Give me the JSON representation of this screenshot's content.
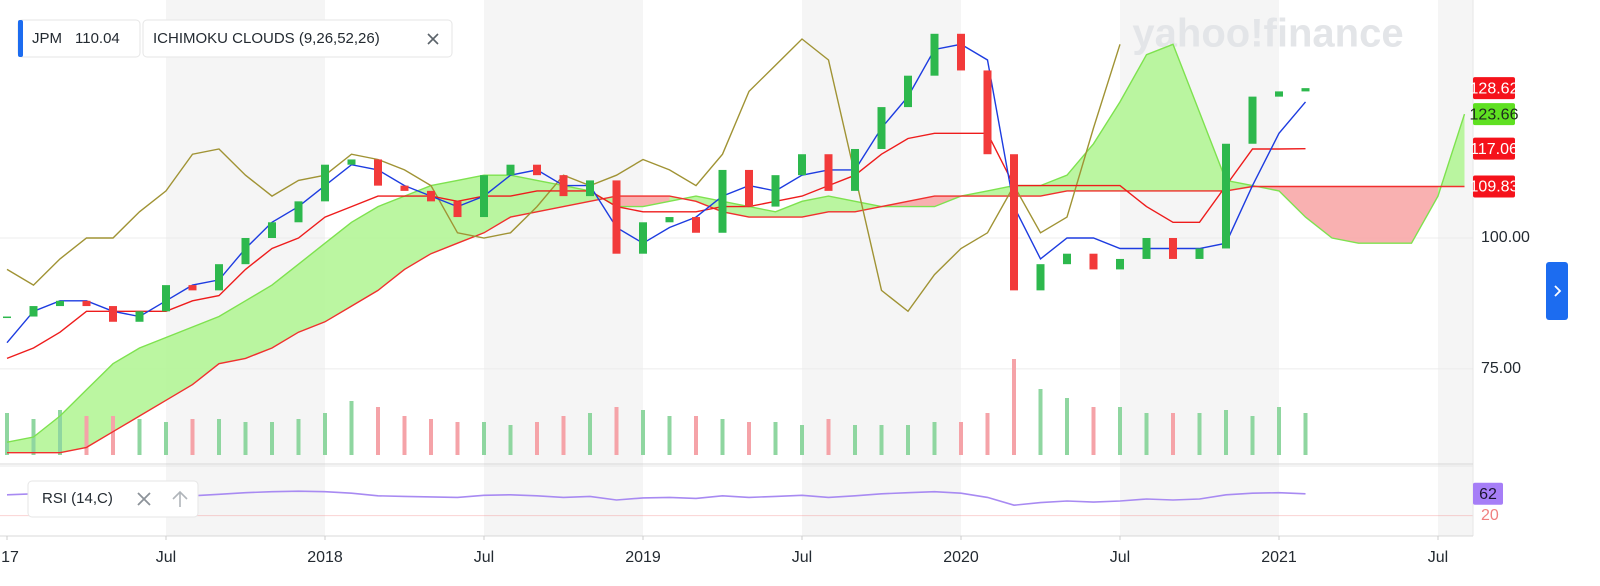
{
  "chart_data": [
    {
      "type": "candlestick",
      "symbol": "JPM",
      "price": 110.04,
      "indicator": "ICHIMOKU CLOUDS (9,26,52,26)",
      "watermark": "yahoo!finance",
      "x": [
        "2017-01",
        "2017-02",
        "2017-03",
        "2017-04",
        "2017-05",
        "2017-06",
        "2017-07",
        "2017-08",
        "2017-09",
        "2017-10",
        "2017-11",
        "2017-12",
        "2018-01",
        "2018-02",
        "2018-03",
        "2018-04",
        "2018-05",
        "2018-06",
        "2018-07",
        "2018-08",
        "2018-09",
        "2018-10",
        "2018-11",
        "2018-12",
        "2019-01",
        "2019-02",
        "2019-03",
        "2019-04",
        "2019-05",
        "2019-06",
        "2019-07",
        "2019-08",
        "2019-09",
        "2019-10",
        "2019-11",
        "2019-12",
        "2020-01",
        "2020-02",
        "2020-03",
        "2020-04",
        "2020-05",
        "2020-06",
        "2020-07",
        "2020-08",
        "2020-09",
        "2020-10",
        "2020-11",
        "2020-12",
        "2021-01",
        "2021-02",
        "2021-03",
        "2021-04",
        "2021-05",
        "2021-06",
        "2021-07",
        "2021-08"
      ],
      "xticks": [
        {
          "value": "2017-01",
          "label": "17"
        },
        {
          "value": "2017-07",
          "label": "Jul"
        },
        {
          "value": "2018-01",
          "label": "2018"
        },
        {
          "value": "2018-07",
          "label": "Jul"
        },
        {
          "value": "2019-01",
          "label": "2019"
        },
        {
          "value": "2019-07",
          "label": "Jul"
        },
        {
          "value": "2020-01",
          "label": "2020"
        },
        {
          "value": "2020-07",
          "label": "Jul"
        },
        {
          "value": "2021-01",
          "label": "2021"
        },
        {
          "value": "2021-07",
          "label": "Jul"
        }
      ],
      "ylim": [
        57.6,
        144.5
      ],
      "yticks": [
        {
          "value": 75,
          "label": "75.00"
        },
        {
          "value": 100,
          "label": "100.00"
        }
      ],
      "y2lim": [
        0,
        150
      ],
      "grid": true,
      "series": [
        {
          "type": "candlestick",
          "up_color": "#2db84d",
          "down_color": "#f23a3a",
          "label_color": "#f5121b",
          "values": [
            85,
            87,
            88,
            87,
            84,
            86,
            91,
            90,
            95,
            100,
            103,
            107,
            114,
            115,
            110,
            109,
            107,
            104,
            112,
            114,
            112,
            108,
            111,
            97,
            103,
            104,
            101,
            113,
            106,
            112,
            116,
            109,
            117,
            125,
            131,
            139,
            132,
            116,
            90,
            95,
            97,
            94,
            96,
            100,
            96,
            98,
            118,
            127,
            128,
            128.62,
            null,
            null,
            null,
            null,
            null,
            null
          ]
        },
        {
          "type": "bar",
          "axis": "y2",
          "up_color": "#8fd6a0",
          "down_color": "#f5a3a8",
          "values": [
            14,
            12,
            15,
            13,
            13,
            12,
            11,
            12,
            12,
            11,
            11,
            12,
            14,
            18,
            16,
            13,
            12,
            11,
            11,
            10,
            11,
            13,
            14,
            16,
            15,
            13,
            13,
            12,
            11,
            11,
            10,
            12,
            10,
            10,
            10,
            11,
            11,
            14,
            32,
            22,
            19,
            16,
            16,
            14,
            14,
            14,
            15,
            13,
            16,
            14,
            null,
            null,
            null,
            null,
            null,
            null
          ]
        },
        {
          "type": "line",
          "color": "#7ee24f",
          "fill": "#b4f597",
          "label_color": "#5fe021",
          "values": [
            61,
            62,
            66,
            71,
            76,
            79,
            81,
            83,
            85,
            88,
            91,
            95,
            99,
            103,
            106,
            108,
            110,
            111,
            112,
            112,
            111,
            110,
            109,
            106,
            106,
            107,
            108,
            107,
            106,
            105,
            107,
            108,
            107,
            106,
            106,
            106,
            108,
            109,
            110,
            110,
            112,
            118,
            126,
            135,
            137,
            124,
            111,
            110,
            109,
            104,
            100,
            99,
            99,
            99,
            108,
            123.66
          ]
        },
        {
          "type": "line",
          "color": "#f0302e",
          "fill": "#f8a9a9",
          "label_color": "#f5121b",
          "values": [
            59,
            59,
            59,
            60,
            63,
            66,
            69,
            72,
            76,
            77,
            79,
            82,
            84,
            87,
            90,
            94,
            97,
            99,
            101,
            104,
            105,
            106,
            107,
            108,
            108,
            108,
            107,
            105,
            104,
            104,
            104,
            105,
            105,
            106,
            107,
            108,
            108,
            108,
            108,
            108,
            109,
            109,
            109,
            109,
            109,
            109,
            109,
            109.83,
            109.83,
            109.83,
            109.83,
            109.83,
            109.83,
            109.83,
            109.83,
            109.83
          ]
        },
        {
          "type": "line",
          "color": "#a09334",
          "values": [
            94,
            91,
            96,
            100,
            100,
            105,
            109,
            116,
            117,
            112,
            108,
            111,
            112,
            116,
            115,
            113,
            110,
            101,
            100,
            101,
            106,
            112,
            110,
            112,
            115,
            113,
            110,
            116,
            128,
            133,
            138,
            134,
            112,
            90,
            86,
            93,
            98,
            101,
            110,
            101,
            104,
            121,
            137,
            null,
            null,
            null,
            null,
            null,
            null,
            null,
            null,
            null,
            null,
            null,
            null,
            null
          ]
        },
        {
          "type": "line",
          "color": "#ee1c1c",
          "label_color": "#f5121b",
          "values": [
            77,
            79,
            82,
            86,
            86,
            86,
            86,
            88,
            89,
            94,
            98,
            100,
            104,
            106,
            108,
            108,
            108,
            107,
            108,
            108,
            109,
            109,
            109,
            106,
            105,
            105,
            105,
            106,
            106,
            107,
            108,
            110,
            112,
            116,
            119,
            120,
            120,
            120,
            110,
            110,
            110,
            110,
            110,
            106,
            103,
            103,
            110,
            117,
            117,
            117.06,
            null,
            null,
            null,
            null,
            null,
            null
          ]
        },
        {
          "type": "line",
          "color": "#1d3ce0",
          "values": [
            80,
            86,
            88,
            88,
            86,
            85,
            88,
            91,
            92,
            98,
            103,
            106,
            110,
            114,
            113,
            110,
            108,
            106,
            108,
            112,
            113,
            110,
            110,
            102,
            99,
            102,
            104,
            108,
            110,
            109,
            112,
            113,
            113,
            121,
            127,
            136,
            137,
            134,
            106,
            96,
            100,
            100,
            98,
            98,
            98,
            98,
            99,
            110,
            120,
            126,
            null,
            null,
            null,
            null,
            null,
            null
          ]
        }
      ]
    },
    {
      "type": "line",
      "title": "RSI (14,C)",
      "color": "#a88af2",
      "label_color": "#a67ef7",
      "tick_color": "#f08080",
      "ylim": [
        0,
        100
      ],
      "yticks": [
        20
      ],
      "values": [
        60,
        62,
        60,
        58,
        55,
        57,
        60,
        58,
        61,
        64,
        66,
        67,
        66,
        63,
        58,
        57,
        56,
        55,
        59,
        60,
        58,
        55,
        57,
        50,
        54,
        55,
        53,
        58,
        55,
        57,
        59,
        55,
        58,
        62,
        64,
        66,
        63,
        55,
        40,
        45,
        48,
        46,
        48,
        52,
        50,
        52,
        60,
        63,
        64,
        62
      ]
    }
  ]
}
